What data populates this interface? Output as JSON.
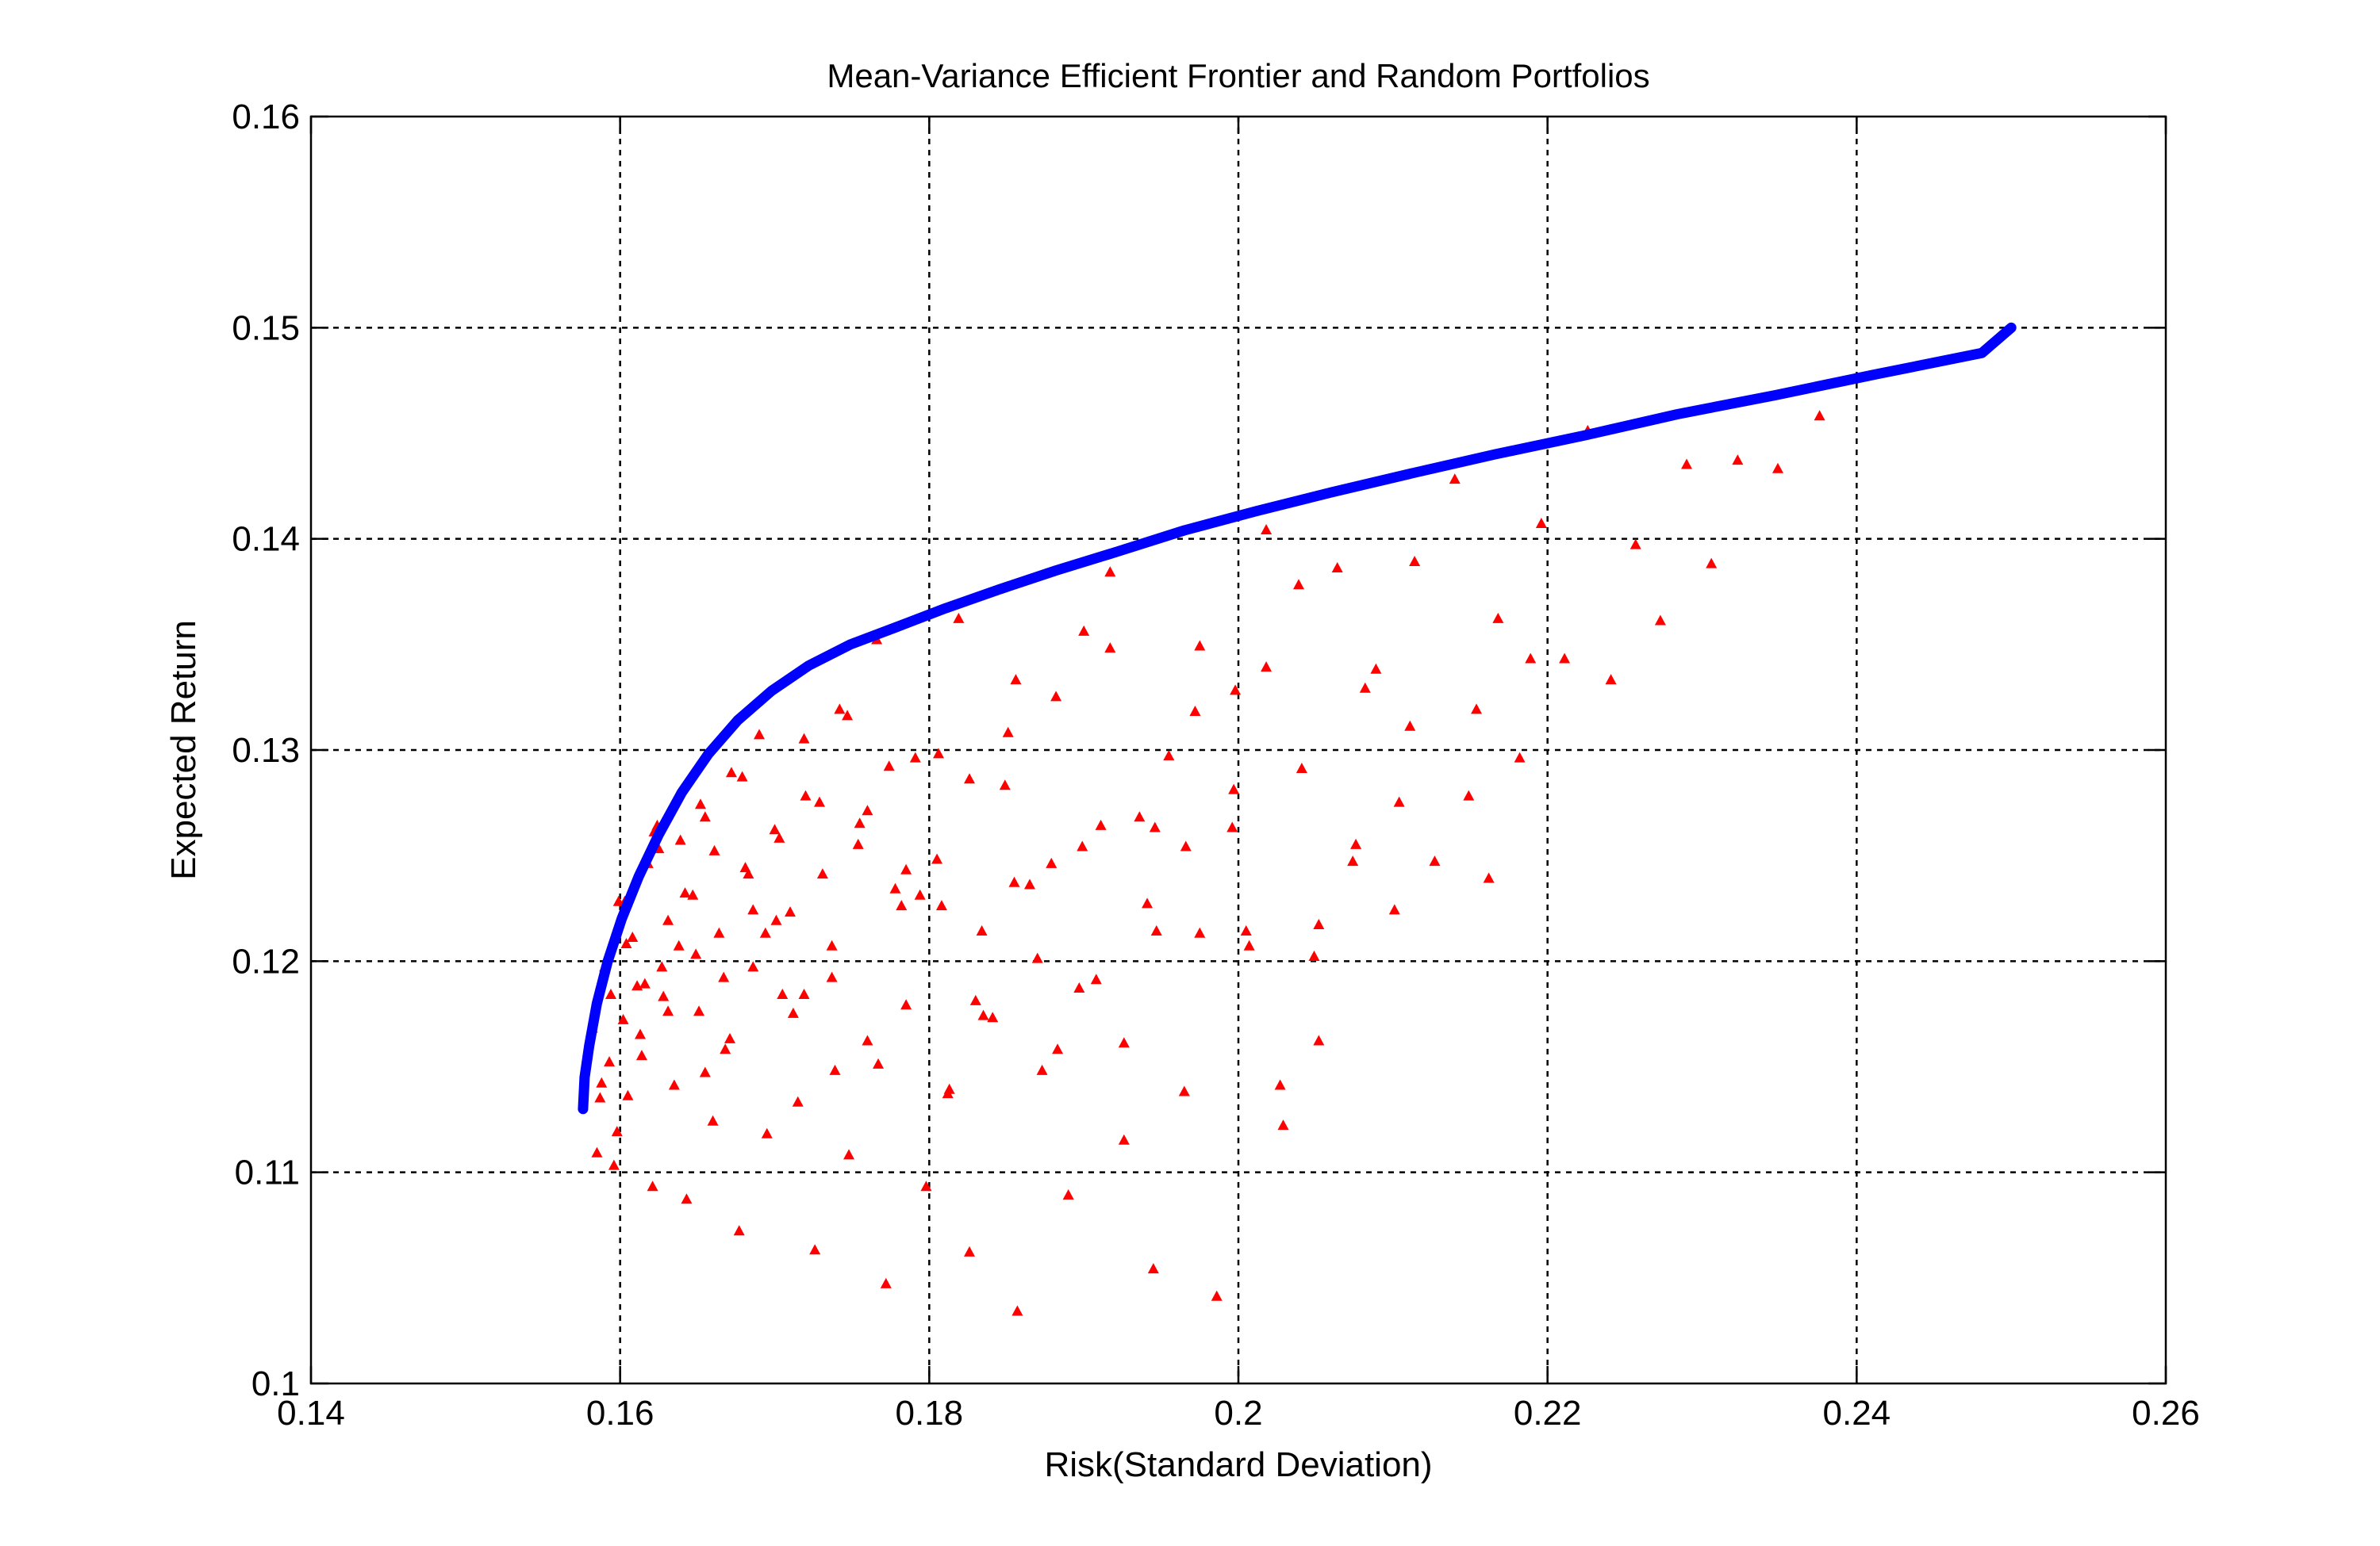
{
  "chart_data": {
    "type": "scatter",
    "title": "Mean-Variance Efficient Frontier and Random Portfolios",
    "xlabel": "Risk(Standard Deviation)",
    "ylabel": "Expected Return",
    "xlim": [
      0.14,
      0.26
    ],
    "ylim": [
      0.1,
      0.16
    ],
    "x_ticks": [
      0.14,
      0.16,
      0.18,
      0.2,
      0.22,
      0.24,
      0.26
    ],
    "y_ticks": [
      0.1,
      0.11,
      0.12,
      0.13,
      0.14,
      0.15,
      0.16
    ],
    "x_tick_labels": [
      "0.14",
      "0.16",
      "0.18",
      "0.2",
      "0.22",
      "0.24",
      "0.26"
    ],
    "y_tick_labels": [
      "0.1",
      "0.11",
      "0.12",
      "0.13",
      "0.14",
      "0.15",
      "0.16"
    ],
    "grid": true,
    "series": [
      {
        "color": "#0000ff",
        "style": "line",
        "x": [
          0.1576,
          0.1577,
          0.158,
          0.1585,
          0.1592,
          0.1601,
          0.1612,
          0.1625,
          0.164,
          0.1657,
          0.1676,
          0.1698,
          0.1722,
          0.1749,
          0.1778,
          0.181,
          0.1845,
          0.1882,
          0.1922,
          0.1965,
          0.2011,
          0.206,
          0.2112,
          0.2166,
          0.2224,
          0.2284,
          0.2347,
          0.2413,
          0.2481,
          0.25
        ],
        "y": [
          0.113,
          0.1145,
          0.116,
          0.118,
          0.12,
          0.122,
          0.124,
          0.126,
          0.128,
          0.1298,
          0.1314,
          0.1328,
          0.134,
          0.135,
          0.1358,
          0.1367,
          0.1376,
          0.1385,
          0.1394,
          0.1404,
          0.1413,
          0.1422,
          0.1431,
          0.144,
          0.1449,
          0.1459,
          0.1468,
          0.1478,
          0.1488,
          0.15
        ]
      },
      {
        "color": "#ff0000",
        "style": "markers",
        "x": [
          0.1582,
          0.1585,
          0.1588,
          0.159,
          0.1593,
          0.1596,
          0.1599,
          0.1602,
          0.1605,
          0.1608,
          0.1611,
          0.1614,
          0.1618,
          0.1621,
          0.1624,
          0.1628,
          0.1631,
          0.1635,
          0.1639,
          0.1643,
          0.1647,
          0.1651,
          0.1655,
          0.166,
          0.1664,
          0.1668,
          0.1672,
          0.1677,
          0.1681,
          0.1686,
          0.169,
          0.1695,
          0.17,
          0.1705,
          0.171,
          0.1715,
          0.172,
          0.1726,
          0.1731,
          0.1737,
          0.1742,
          0.1748,
          0.1754,
          0.176,
          0.1766,
          0.1772,
          0.1778,
          0.1785,
          0.1791,
          0.1798,
          0.1805,
          0.1812,
          0.1819,
          0.1826,
          0.1834,
          0.1841,
          0.1849,
          0.1857,
          0.1865,
          0.1873,
          0.1882,
          0.189,
          0.1899,
          0.1908,
          0.1917,
          0.1926,
          0.1936,
          0.1945,
          0.1955,
          0.1965,
          0.1975,
          0.1986,
          0.1996,
          0.2007,
          0.2018,
          0.2029,
          0.2041,
          0.2052,
          0.2064,
          0.2076,
          0.2089,
          0.2101,
          0.2114,
          0.2127,
          0.214,
          0.2154,
          0.2168,
          0.2182,
          0.2196,
          0.2211,
          0.2226,
          0.2241,
          0.2257,
          0.2273,
          0.229,
          0.2306,
          0.2323,
          0.2349,
          0.2376,
          0.1587,
          0.1594,
          0.1603,
          0.1613,
          0.1625,
          0.1638,
          0.1652,
          0.1667,
          0.1683,
          0.1701,
          0.1719,
          0.1739,
          0.176,
          0.1782,
          0.1806,
          0.183,
          0.1856,
          0.1883,
          0.1911,
          0.1941,
          0.1972,
          0.2005,
          0.2039,
          0.2074,
          0.2111,
          0.2149,
          0.2189,
          0.1598,
          0.1622,
          0.1649,
          0.1679,
          0.1712,
          0.1747,
          0.1785,
          0.1826,
          0.187,
          0.1917,
          0.1966,
          0.2018,
          0.1604,
          0.1631,
          0.1661,
          0.1694,
          0.1729,
          0.1767,
          0.1808,
          0.1851,
          0.1897,
          0.1946,
          0.1998,
          0.2052,
          0.1616,
          0.1642,
          0.1671,
          0.1703,
          0.1737,
          0.1774,
          0.1813,
          0.1855,
          0.19,
          0.1947,
          0.1997,
          0.2049,
          0.2104,
          0.2162,
          0.1627,
          0.1655,
          0.1686,
          0.1719,
          0.1755,
          0.1794,
          0.1835,
          0.1879,
          0.1926,
          0.1975,
          0.2027,
          0.2082
        ],
        "y": [
          0.1168,
          0.1109,
          0.1142,
          0.1197,
          0.1152,
          0.1103,
          0.1228,
          0.1172,
          0.1136,
          0.1211,
          0.1188,
          0.1155,
          0.1246,
          0.1093,
          0.1264,
          0.1183,
          0.1219,
          0.1141,
          0.1257,
          0.1087,
          0.1231,
          0.1176,
          0.1268,
          0.1124,
          0.1213,
          0.1158,
          0.1289,
          0.1072,
          0.1244,
          0.1197,
          0.1307,
          0.1118,
          0.1262,
          0.1184,
          0.1223,
          0.1133,
          0.1278,
          0.1063,
          0.1241,
          0.1192,
          0.1319,
          0.1108,
          0.1255,
          0.1162,
          0.1352,
          0.1047,
          0.1234,
          0.1179,
          0.1296,
          0.1093,
          0.1248,
          0.1137,
          0.1362,
          0.1062,
          0.1214,
          0.1173,
          0.1283,
          0.1034,
          0.1236,
          0.1148,
          0.1325,
          0.1089,
          0.1254,
          0.1191,
          0.1384,
          0.1115,
          0.1268,
          0.1054,
          0.1297,
          0.1138,
          0.1349,
          0.1041,
          0.1263,
          0.1207,
          0.1339,
          0.1122,
          0.1291,
          0.1162,
          0.1386,
          0.1255,
          0.1338,
          0.1224,
          0.1389,
          0.1247,
          0.1428,
          0.1319,
          0.1362,
          0.1296,
          0.1407,
          0.1343,
          0.1451,
          0.1333,
          0.1397,
          0.1361,
          0.1435,
          0.1388,
          0.1437,
          0.1433,
          0.1458,
          0.1135,
          0.1184,
          0.1228,
          0.1165,
          0.1253,
          0.1207,
          0.1274,
          0.1192,
          0.1241,
          0.1219,
          0.1305,
          0.1148,
          0.1271,
          0.1226,
          0.1298,
          0.1181,
          0.1333,
          0.1158,
          0.1264,
          0.1227,
          0.1318,
          0.1214,
          0.1378,
          0.1247,
          0.1311,
          0.1278,
          0.1343,
          0.1119,
          0.1261,
          0.1203,
          0.1287,
          0.1175,
          0.1316,
          0.1243,
          0.1286,
          0.1201,
          0.1348,
          0.1254,
          0.1404,
          0.1208,
          0.1176,
          0.1252,
          0.1213,
          0.1275,
          0.1151,
          0.1226,
          0.1308,
          0.1187,
          0.1263,
          0.1328,
          0.1217,
          0.1189,
          0.1232,
          0.1163,
          0.1258,
          0.1207,
          0.1292,
          0.1139,
          0.1237,
          0.1356,
          0.1214,
          0.1281,
          0.1202,
          0.1275,
          0.1239,
          0.1197,
          0.1147,
          0.1224,
          0.1184,
          0.1265,
          0.1231,
          0.1174,
          0.1246,
          0.1161,
          0.1213,
          0.1141,
          0.1329
        ]
      }
    ]
  }
}
